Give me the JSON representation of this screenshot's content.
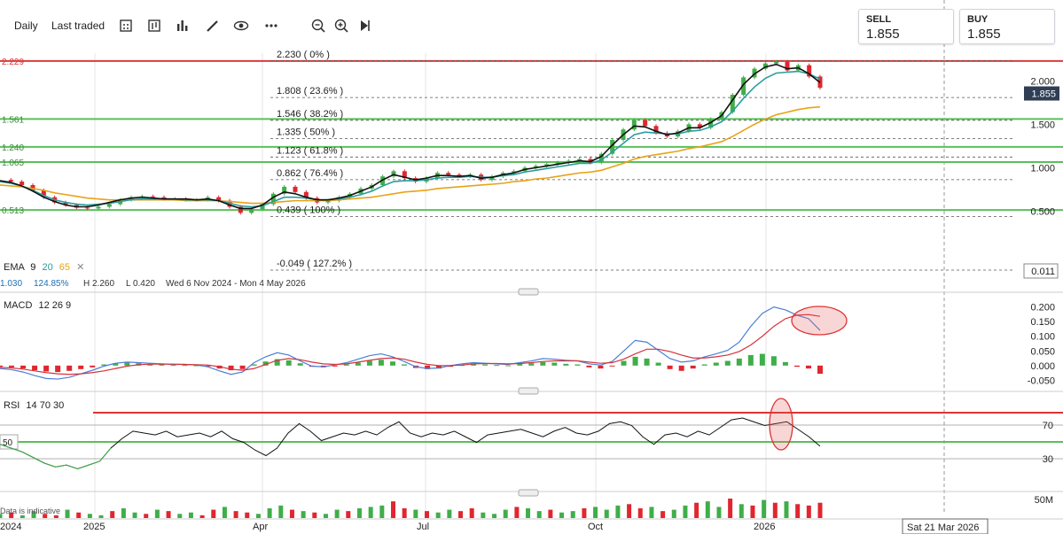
{
  "toolbar": {
    "interval": "Daily",
    "price_type": "Last traded",
    "icons": [
      "calendar-icon",
      "chart-type-icon",
      "indicators-icon",
      "draw-icon",
      "eye-icon",
      "zoom-out-icon",
      "zoom-in-icon",
      "play-icon"
    ]
  },
  "sell": {
    "label": "SELL",
    "value": "1.855"
  },
  "buy": {
    "label": "BUY",
    "value": "1.855"
  },
  "current_price": "1.855",
  "ema": {
    "label": "EMA",
    "p1": "9",
    "p2": "20",
    "p3": "65",
    "close_icon": "close-icon",
    "colors": {
      "p1": "#111111",
      "p2": "#2a9d9f",
      "p3": "#e8a317"
    }
  },
  "stats": {
    "value": "1.030",
    "pct": "124.85%",
    "high": "H 2.260",
    "low": "L 0.420",
    "range": "Wed 6 Nov 2024 - Mon 4 May 2026"
  },
  "macd": {
    "label": "MACD",
    "params": "12 26 9"
  },
  "rsi": {
    "label": "RSI",
    "params": "14 70 30"
  },
  "disclaimer": "Data is indicative",
  "crosshair_date": "Sat 21 Mar 2026",
  "colors": {
    "up": "#3fae49",
    "down": "#e0262f",
    "hline_red": "#d93b3b",
    "hline_green": "#5bbf5b"
  },
  "chart_data": [
    {
      "type": "line",
      "name": "price",
      "x_labels": [
        "2024",
        "2025",
        "Apr",
        "Jul",
        "Oct",
        "2026"
      ],
      "y_ticks": [
        "2.000",
        "1.500",
        "1.000",
        "0.500"
      ],
      "ylim": [
        0.3,
        2.35
      ],
      "points": [
        0.86,
        0.84,
        0.8,
        0.74,
        0.66,
        0.6,
        0.57,
        0.54,
        0.53,
        0.55,
        0.58,
        0.63,
        0.66,
        0.67,
        0.66,
        0.64,
        0.64,
        0.63,
        0.63,
        0.66,
        0.62,
        0.55,
        0.48,
        0.52,
        0.58,
        0.7,
        0.78,
        0.72,
        0.65,
        0.6,
        0.62,
        0.66,
        0.7,
        0.76,
        0.8,
        0.9,
        0.96,
        0.88,
        0.84,
        0.88,
        0.94,
        0.92,
        0.9,
        0.92,
        0.86,
        0.9,
        0.94,
        0.96,
        1.0,
        1.02,
        1.04,
        1.06,
        1.08,
        1.1,
        1.06,
        1.16,
        1.32,
        1.44,
        1.55,
        1.48,
        1.4,
        1.36,
        1.42,
        1.5,
        1.46,
        1.56,
        1.64,
        1.84,
        2.04,
        2.14,
        2.2,
        2.22,
        2.12,
        2.18,
        2.05,
        1.92
      ],
      "ema9": [
        0.85,
        0.83,
        0.79,
        0.73,
        0.66,
        0.61,
        0.57,
        0.55,
        0.55,
        0.57,
        0.6,
        0.63,
        0.65,
        0.66,
        0.65,
        0.64,
        0.64,
        0.64,
        0.63,
        0.64,
        0.62,
        0.57,
        0.53,
        0.53,
        0.57,
        0.66,
        0.72,
        0.7,
        0.66,
        0.63,
        0.63,
        0.65,
        0.68,
        0.73,
        0.78,
        0.86,
        0.92,
        0.89,
        0.86,
        0.88,
        0.91,
        0.91,
        0.9,
        0.91,
        0.88,
        0.89,
        0.92,
        0.94,
        0.98,
        1.0,
        1.02,
        1.04,
        1.06,
        1.08,
        1.07,
        1.13,
        1.26,
        1.38,
        1.48,
        1.47,
        1.42,
        1.38,
        1.4,
        1.46,
        1.46,
        1.52,
        1.6,
        1.78,
        1.96,
        2.08,
        2.16,
        2.19,
        2.14,
        2.15,
        2.08,
        1.98
      ],
      "ema20": [
        0.84,
        0.82,
        0.79,
        0.74,
        0.68,
        0.63,
        0.6,
        0.58,
        0.57,
        0.58,
        0.59,
        0.61,
        0.63,
        0.64,
        0.64,
        0.64,
        0.64,
        0.63,
        0.63,
        0.63,
        0.62,
        0.59,
        0.56,
        0.55,
        0.56,
        0.61,
        0.66,
        0.66,
        0.65,
        0.63,
        0.63,
        0.64,
        0.66,
        0.69,
        0.73,
        0.79,
        0.84,
        0.85,
        0.85,
        0.86,
        0.88,
        0.89,
        0.89,
        0.9,
        0.89,
        0.89,
        0.91,
        0.92,
        0.95,
        0.97,
        0.99,
        1.01,
        1.03,
        1.05,
        1.05,
        1.09,
        1.18,
        1.28,
        1.38,
        1.41,
        1.4,
        1.39,
        1.39,
        1.42,
        1.43,
        1.47,
        1.53,
        1.65,
        1.8,
        1.93,
        2.03,
        2.09,
        2.1,
        2.11,
        2.08,
        2.02
      ],
      "ema65": [
        0.8,
        0.79,
        0.78,
        0.76,
        0.74,
        0.71,
        0.69,
        0.67,
        0.65,
        0.64,
        0.63,
        0.63,
        0.63,
        0.63,
        0.63,
        0.63,
        0.63,
        0.62,
        0.62,
        0.62,
        0.62,
        0.61,
        0.6,
        0.59,
        0.59,
        0.6,
        0.61,
        0.62,
        0.62,
        0.62,
        0.62,
        0.63,
        0.64,
        0.65,
        0.66,
        0.68,
        0.7,
        0.72,
        0.73,
        0.74,
        0.76,
        0.77,
        0.78,
        0.79,
        0.8,
        0.81,
        0.82,
        0.84,
        0.85,
        0.87,
        0.88,
        0.9,
        0.92,
        0.94,
        0.95,
        0.97,
        1.01,
        1.05,
        1.1,
        1.13,
        1.15,
        1.17,
        1.19,
        1.22,
        1.24,
        1.27,
        1.3,
        1.36,
        1.43,
        1.5,
        1.56,
        1.61,
        1.64,
        1.67,
        1.69,
        1.7
      ],
      "fib_levels": [
        {
          "value": 2.23,
          "label": "2.230 ( 0% )"
        },
        {
          "value": 1.808,
          "label": "1.808 ( 23.6% )"
        },
        {
          "value": 1.546,
          "label": "1.546 ( 38.2% )"
        },
        {
          "value": 1.335,
          "label": "1.335 ( 50% )"
        },
        {
          "value": 1.123,
          "label": "1.123 ( 61.8% )"
        },
        {
          "value": 0.862,
          "label": "0.862 ( 76.4% )"
        },
        {
          "value": 0.439,
          "label": "0.439 ( 100% )"
        },
        {
          "value": -0.049,
          "label": "-0.049 ( 127.2% )"
        }
      ],
      "hlines": [
        {
          "value": 2.229,
          "label": "2.229",
          "color": "red"
        },
        {
          "value": 1.561,
          "label": "1.561",
          "color": "green"
        },
        {
          "value": 1.24,
          "label": "1.240",
          "color": "green"
        },
        {
          "value": 1.065,
          "label": "1.065",
          "color": "green"
        },
        {
          "value": 0.513,
          "label": "0.513",
          "color": "green"
        }
      ],
      "bottom_right_tag": "0.011"
    },
    {
      "type": "line",
      "name": "macd",
      "y_ticks": [
        "0.200",
        "0.150",
        "0.100",
        "0.050",
        "0.000",
        "-0.050"
      ],
      "ylim": [
        -0.07,
        0.22
      ],
      "histogram": [
        -0.004,
        -0.006,
        -0.01,
        -0.016,
        -0.02,
        -0.022,
        -0.018,
        -0.012,
        -0.006,
        0.004,
        0.008,
        0.01,
        0.008,
        0.006,
        0.004,
        0.002,
        0.002,
        0.001,
        -0.002,
        -0.01,
        -0.016,
        -0.012,
        0.004,
        0.014,
        0.022,
        0.018,
        0.008,
        -0.004,
        -0.006,
        -0.002,
        0.004,
        0.01,
        0.016,
        0.02,
        0.014,
        0.004,
        -0.008,
        -0.012,
        -0.01,
        -0.004,
        0.002,
        0.006,
        0.004,
        0.002,
        0.001,
        0.006,
        0.008,
        0.012,
        0.01,
        0.006,
        0.004,
        -0.006,
        -0.01,
        -0.002,
        0.016,
        0.03,
        0.024,
        0.01,
        -0.012,
        -0.018,
        -0.01,
        0.004,
        0.01,
        0.016,
        0.024,
        0.036,
        0.04,
        0.032,
        0.012,
        -0.004,
        -0.01,
        -0.028
      ],
      "macd": [
        -0.01,
        -0.014,
        -0.022,
        -0.034,
        -0.044,
        -0.046,
        -0.04,
        -0.028,
        -0.016,
        -0.002,
        0.008,
        0.012,
        0.01,
        0.008,
        0.006,
        0.004,
        0.004,
        0.002,
        -0.004,
        -0.018,
        -0.03,
        -0.022,
        0.01,
        0.03,
        0.044,
        0.036,
        0.016,
        -0.002,
        -0.004,
        0.002,
        0.01,
        0.022,
        0.034,
        0.04,
        0.03,
        0.014,
        -0.004,
        -0.01,
        -0.008,
        0.0,
        0.006,
        0.01,
        0.008,
        0.006,
        0.004,
        0.01,
        0.016,
        0.024,
        0.022,
        0.018,
        0.016,
        0.006,
        0.002,
        0.014,
        0.05,
        0.086,
        0.08,
        0.052,
        0.024,
        0.012,
        0.016,
        0.03,
        0.04,
        0.052,
        0.08,
        0.134,
        0.178,
        0.2,
        0.19,
        0.172,
        0.16,
        0.12
      ],
      "signal": [
        -0.006,
        -0.008,
        -0.012,
        -0.018,
        -0.024,
        -0.028,
        -0.03,
        -0.028,
        -0.024,
        -0.018,
        -0.01,
        -0.002,
        0.003,
        0.005,
        0.005,
        0.005,
        0.004,
        0.003,
        0.002,
        -0.004,
        -0.012,
        -0.016,
        -0.01,
        0.004,
        0.018,
        0.024,
        0.02,
        0.012,
        0.006,
        0.004,
        0.006,
        0.012,
        0.018,
        0.024,
        0.026,
        0.022,
        0.012,
        0.004,
        0.0,
        0.0,
        0.002,
        0.006,
        0.007,
        0.007,
        0.006,
        0.007,
        0.01,
        0.014,
        0.016,
        0.016,
        0.016,
        0.012,
        0.008,
        0.01,
        0.022,
        0.04,
        0.056,
        0.056,
        0.048,
        0.036,
        0.026,
        0.026,
        0.03,
        0.036,
        0.048,
        0.07,
        0.1,
        0.134,
        0.16,
        0.172,
        0.174,
        0.168
      ]
    },
    {
      "type": "line",
      "name": "rsi",
      "y_ticks": [
        "70",
        "30"
      ],
      "left_tag": "50",
      "ylim": [
        12,
        92
      ],
      "values": [
        48,
        44,
        40,
        34,
        28,
        24,
        26,
        22,
        26,
        30,
        44,
        54,
        62,
        60,
        58,
        62,
        56,
        58,
        60,
        56,
        62,
        54,
        50,
        42,
        36,
        44,
        60,
        70,
        62,
        52,
        56,
        60,
        58,
        62,
        58,
        66,
        72,
        60,
        56,
        60,
        58,
        62,
        56,
        50,
        58,
        60,
        62,
        64,
        60,
        56,
        62,
        66,
        60,
        58,
        62,
        70,
        72,
        68,
        56,
        48,
        58,
        60,
        56,
        62,
        58,
        66,
        74,
        76,
        72,
        68,
        70,
        72,
        64,
        56,
        46
      ]
    },
    {
      "type": "bar",
      "name": "volume",
      "y_ticks": [
        "50M"
      ],
      "values": [
        3,
        4,
        2,
        5,
        3,
        2,
        6,
        4,
        3,
        2,
        5,
        7,
        4,
        3,
        6,
        5,
        3,
        4,
        2,
        6,
        8,
        5,
        4,
        3,
        7,
        9,
        6,
        5,
        4,
        3,
        6,
        5,
        7,
        8,
        9,
        12,
        7,
        6,
        5,
        4,
        6,
        5,
        7,
        4,
        3,
        6,
        8,
        7,
        5,
        6,
        4,
        5,
        7,
        8,
        6,
        9,
        10,
        7,
        8,
        5,
        6,
        9,
        11,
        12,
        8,
        14,
        10,
        9,
        13,
        11,
        12,
        10,
        9,
        11
      ],
      "up": [
        1,
        0,
        1,
        1,
        0,
        0,
        1,
        0,
        1,
        1,
        0,
        1,
        1,
        0,
        1,
        0,
        1,
        1,
        0,
        0,
        1,
        0,
        0,
        1,
        1,
        1,
        0,
        1,
        0,
        1,
        1,
        0,
        1,
        1,
        1,
        0,
        0,
        1,
        0,
        1,
        1,
        0,
        0,
        1,
        1,
        1,
        0,
        1,
        1,
        0,
        1,
        1,
        0,
        1,
        1,
        1,
        0,
        0,
        1,
        0,
        1,
        1,
        0,
        1,
        1,
        0,
        1,
        0,
        1,
        0,
        1,
        0,
        0,
        0
      ]
    }
  ]
}
